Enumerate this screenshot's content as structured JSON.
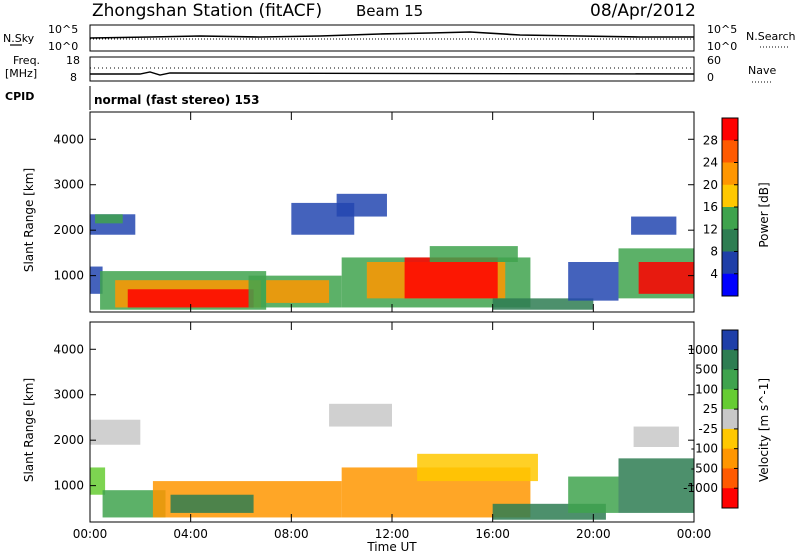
{
  "header": {
    "station": "Zhongshan Station (fitACF)",
    "beam": "Beam 15",
    "date": "08/Apr/2012"
  },
  "top_panels": {
    "nsky_label": "N.Sky",
    "nsky_ticks": [
      "10^5",
      "10^0"
    ],
    "nsearch_label": "N.Search",
    "nsearch_ticks": [
      "10^5",
      "10^0"
    ],
    "freq_label": "Freq.",
    "freq_unit": "[MHz]",
    "freq_ticks": [
      "18",
      "8"
    ],
    "nave_label": "Nave",
    "nave_ticks": [
      "60",
      "0"
    ],
    "cpid_label": "CPID",
    "cpid_text": "normal (fast stereo) 153"
  },
  "chart_data": [
    {
      "type": "heatmap",
      "name": "power-panel",
      "ylabel": "Slant Range [km]",
      "yticks": [
        "1000",
        "2000",
        "3000",
        "4000"
      ],
      "ylim": [
        200,
        4600
      ],
      "xlim": [
        0,
        24
      ],
      "colorbar_label": "Power [dB]",
      "colorbar_ticks": [
        "28",
        "24",
        "20",
        "16",
        "12",
        "8",
        "4"
      ],
      "colorbar_colors": [
        "#ff0000",
        "#ff5a00",
        "#ff9600",
        "#ffc800",
        "#3fa34d",
        "#2e7d52",
        "#1f3fa8",
        "#0000ff"
      ],
      "regions": [
        {
          "t0": 0.0,
          "t1": 1.8,
          "r0": 1900,
          "r1": 2350,
          "color": "#2346b0"
        },
        {
          "t0": 0.2,
          "t1": 1.3,
          "r0": 2150,
          "r1": 2350,
          "color": "#3fa34d"
        },
        {
          "t0": 0.0,
          "t1": 0.5,
          "r0": 600,
          "r1": 1200,
          "color": "#2346b0"
        },
        {
          "t0": 0.4,
          "t1": 7.0,
          "r0": 250,
          "r1": 1100,
          "color": "#3fa34d"
        },
        {
          "t0": 1.0,
          "t1": 6.8,
          "r0": 300,
          "r1": 900,
          "color": "#ff9600"
        },
        {
          "t0": 1.5,
          "t1": 6.5,
          "r0": 300,
          "r1": 700,
          "color": "#ff0000"
        },
        {
          "t0": 6.3,
          "t1": 10.0,
          "r0": 300,
          "r1": 1000,
          "color": "#3fa34d"
        },
        {
          "t0": 7.0,
          "t1": 9.5,
          "r0": 400,
          "r1": 900,
          "color": "#ff9600"
        },
        {
          "t0": 8.0,
          "t1": 10.5,
          "r0": 1900,
          "r1": 2600,
          "color": "#2346b0"
        },
        {
          "t0": 9.8,
          "t1": 11.8,
          "r0": 2300,
          "r1": 2800,
          "color": "#2346b0"
        },
        {
          "t0": 10.0,
          "t1": 17.5,
          "r0": 300,
          "r1": 1400,
          "color": "#3fa34d"
        },
        {
          "t0": 11.0,
          "t1": 16.5,
          "r0": 500,
          "r1": 1300,
          "color": "#ff9600"
        },
        {
          "t0": 12.5,
          "t1": 16.2,
          "r0": 500,
          "r1": 1400,
          "color": "#ff0000"
        },
        {
          "t0": 13.5,
          "t1": 17.0,
          "r0": 1300,
          "r1": 1650,
          "color": "#3fa34d"
        },
        {
          "t0": 16.0,
          "t1": 20.0,
          "r0": 250,
          "r1": 500,
          "color": "#2e7d52"
        },
        {
          "t0": 19.0,
          "t1": 21.0,
          "r0": 450,
          "r1": 1300,
          "color": "#2346b0"
        },
        {
          "t0": 21.0,
          "t1": 24.0,
          "r0": 500,
          "r1": 1600,
          "color": "#3fa34d"
        },
        {
          "t0": 21.8,
          "t1": 24.0,
          "r0": 600,
          "r1": 1300,
          "color": "#ff0000"
        },
        {
          "t0": 21.5,
          "t1": 23.3,
          "r0": 1900,
          "r1": 2300,
          "color": "#2346b0"
        }
      ]
    },
    {
      "type": "heatmap",
      "name": "velocity-panel",
      "ylabel": "Slant Range [km]",
      "xlabel": "Time UT",
      "xticks": [
        "00:00",
        "04:00",
        "08:00",
        "12:00",
        "16:00",
        "20:00",
        "00:00"
      ],
      "yticks": [
        "1000",
        "2000",
        "3000",
        "4000"
      ],
      "ylim": [
        200,
        4600
      ],
      "xlim": [
        0,
        24
      ],
      "colorbar_label": "Velocity [m s^-1]",
      "colorbar_ticks": [
        "1000",
        "500",
        "100",
        "25",
        "-25",
        "-100",
        "-500",
        "-1000"
      ],
      "colorbar_colors": [
        "#1f3fa8",
        "#2e7d52",
        "#3fa34d",
        "#66cc33",
        "#c8c8c8",
        "#ffc800",
        "#ff9600",
        "#ff5a00",
        "#ff0000"
      ],
      "regions": [
        {
          "t0": 0.0,
          "t1": 2.0,
          "r0": 1900,
          "r1": 2450,
          "color": "#c8c8c8"
        },
        {
          "t0": 0.0,
          "t1": 0.6,
          "r0": 800,
          "r1": 1400,
          "color": "#66cc33"
        },
        {
          "t0": 0.5,
          "t1": 3.0,
          "r0": 300,
          "r1": 900,
          "color": "#3fa34d"
        },
        {
          "t0": 2.5,
          "t1": 10.0,
          "r0": 300,
          "r1": 1100,
          "color": "#ff9600"
        },
        {
          "t0": 3.2,
          "t1": 6.5,
          "r0": 400,
          "r1": 800,
          "color": "#2e7d52"
        },
        {
          "t0": 9.5,
          "t1": 12.0,
          "r0": 2300,
          "r1": 2800,
          "color": "#c8c8c8"
        },
        {
          "t0": 10.0,
          "t1": 17.5,
          "r0": 300,
          "r1": 1400,
          "color": "#ff9600"
        },
        {
          "t0": 13.0,
          "t1": 17.8,
          "r0": 1100,
          "r1": 1700,
          "color": "#ffc800"
        },
        {
          "t0": 16.0,
          "t1": 20.5,
          "r0": 250,
          "r1": 600,
          "color": "#2e7d52"
        },
        {
          "t0": 19.0,
          "t1": 21.0,
          "r0": 400,
          "r1": 1200,
          "color": "#3fa34d"
        },
        {
          "t0": 21.0,
          "t1": 24.0,
          "r0": 400,
          "r1": 1600,
          "color": "#2e7d52"
        },
        {
          "t0": 21.6,
          "t1": 23.4,
          "r0": 1850,
          "r1": 2300,
          "color": "#c8c8c8"
        }
      ]
    }
  ]
}
